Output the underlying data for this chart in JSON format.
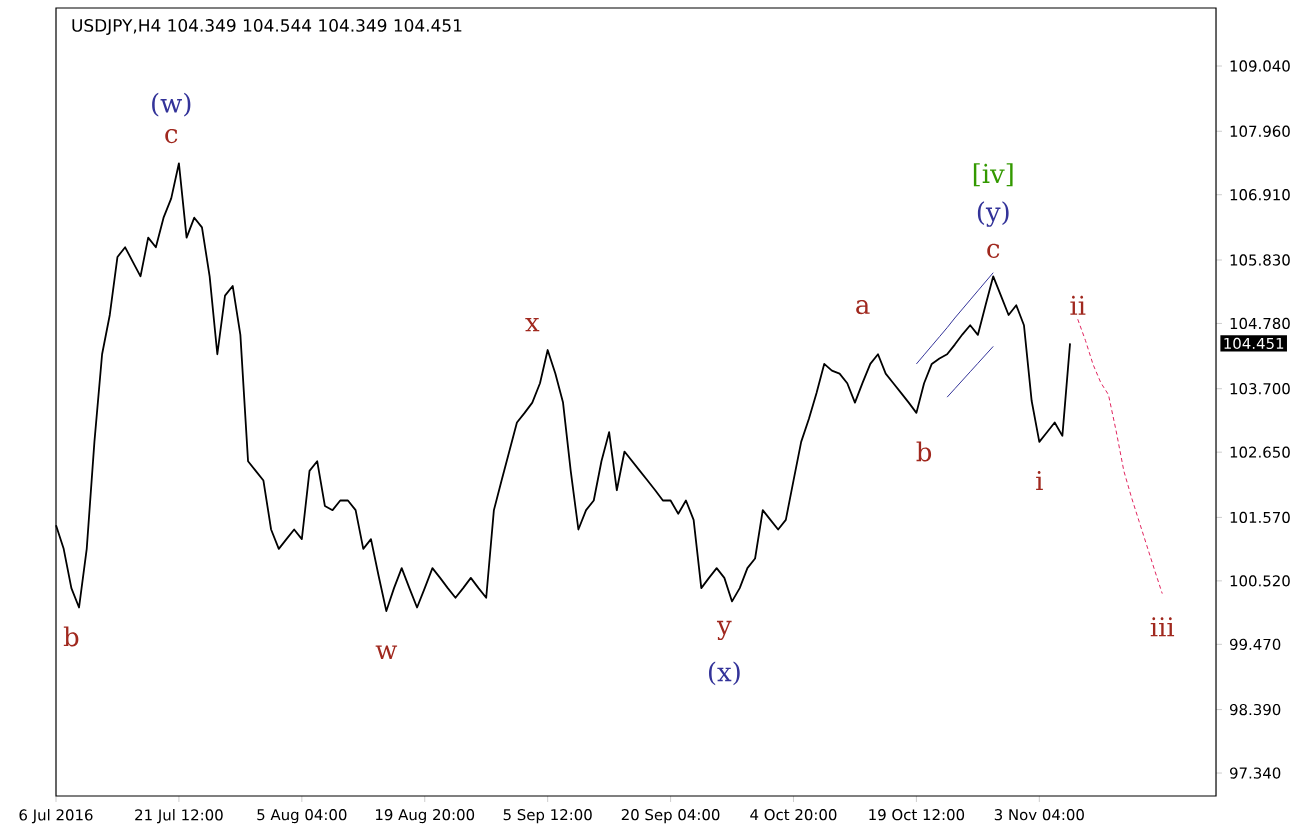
{
  "chart_data": {
    "type": "line",
    "title": "USDJPY,H4  104.349 104.544 104.349 104.451",
    "categories": [
      "6 Jul 2016",
      null,
      null,
      null,
      null,
      null,
      null,
      null,
      null,
      null,
      null,
      null,
      null,
      null,
      null,
      null,
      "21 Jul 12:00",
      null,
      null,
      null,
      null,
      null,
      null,
      null,
      null,
      null,
      null,
      null,
      null,
      null,
      null,
      null,
      "5 Aug 04:00",
      null,
      null,
      null,
      null,
      null,
      null,
      null,
      null,
      null,
      null,
      null,
      null,
      null,
      null,
      null,
      "19 Aug 20:00",
      null,
      null,
      null,
      null,
      null,
      null,
      null,
      null,
      null,
      null,
      null,
      null,
      null,
      null,
      null,
      "5 Sep 12:00",
      null,
      null,
      null,
      null,
      null,
      null,
      null,
      null,
      null,
      null,
      null,
      null,
      null,
      null,
      null,
      "20 Sep 04:00",
      null,
      null,
      null,
      null,
      null,
      null,
      null,
      null,
      null,
      null,
      null,
      null,
      null,
      null,
      null,
      "4 Oct 20:00",
      null,
      null,
      null,
      null,
      null,
      null,
      null,
      null,
      null,
      null,
      null,
      null,
      null,
      null,
      null,
      "19 Oct 12:00",
      null,
      null,
      null,
      null,
      null,
      null,
      null,
      null,
      null,
      null,
      null,
      null,
      null,
      null,
      null,
      "3 Nov 04:00",
      null,
      null,
      null,
      null,
      null,
      null,
      null,
      null,
      null,
      null,
      null,
      null,
      null,
      null,
      null,
      null,
      null,
      null,
      null,
      null,
      null,
      null,
      null
    ],
    "ylim": [
      96.96,
      110.0
    ],
    "yticks": [
      {
        "value": 109.04,
        "label": "109.040"
      },
      {
        "value": 107.96,
        "label": "107.960"
      },
      {
        "value": 106.91,
        "label": "106.910"
      },
      {
        "value": 105.83,
        "label": "105.830"
      },
      {
        "value": 104.78,
        "label": "104.780"
      },
      {
        "value": 103.7,
        "label": "103.700"
      },
      {
        "value": 102.65,
        "label": "102.650"
      },
      {
        "value": 101.57,
        "label": "101.570"
      },
      {
        "value": 100.52,
        "label": "100.520"
      },
      {
        "value": 99.47,
        "label": "99.470"
      },
      {
        "value": 98.39,
        "label": "98.390"
      },
      {
        "value": 97.34,
        "label": "97.340"
      }
    ],
    "grid": false,
    "marker": "none",
    "series": [
      {
        "color": "#000000",
        "values": [
          101.44,
          101.05,
          100.4,
          100.08,
          101.05,
          102.82,
          104.27,
          104.92,
          105.88,
          106.04,
          105.8,
          105.56,
          106.2,
          106.04,
          106.53,
          106.85,
          107.43,
          106.2,
          106.53,
          106.37,
          105.56,
          104.27,
          105.24,
          105.4,
          104.59,
          102.5,
          102.34,
          102.18,
          101.37,
          101.05,
          101.21,
          101.37,
          101.21,
          102.34,
          102.5,
          101.76,
          101.69,
          101.85,
          101.85,
          101.69,
          101.05,
          101.21,
          100.6,
          100.02,
          100.4,
          100.73,
          100.4,
          100.08,
          100.4,
          100.73,
          100.57,
          100.4,
          100.24,
          100.4,
          100.57,
          100.4,
          100.24,
          101.69,
          102.18,
          102.66,
          103.14,
          103.3,
          103.47,
          103.79,
          104.34,
          103.95,
          103.47,
          102.34,
          101.37,
          101.69,
          101.85,
          102.5,
          102.98,
          102.02,
          102.66,
          102.5,
          102.34,
          102.18,
          102.02,
          101.85,
          101.85,
          101.63,
          101.85,
          101.53,
          100.4,
          100.57,
          100.73,
          100.57,
          100.18,
          100.4,
          100.73,
          100.89,
          101.69,
          101.53,
          101.37,
          101.53,
          102.18,
          102.82,
          103.2,
          103.63,
          104.11,
          104.0,
          103.95,
          103.79,
          103.47,
          103.8,
          104.11,
          104.27,
          103.95,
          103.79,
          103.63,
          103.47,
          103.3,
          103.79,
          104.11,
          104.2,
          104.27,
          104.43,
          104.6,
          104.75,
          104.59,
          105.08,
          105.56,
          105.24,
          104.92,
          105.08,
          104.75,
          103.5,
          102.82,
          102.98,
          103.14,
          102.92,
          104.45,
          null,
          null,
          null,
          null,
          null,
          null,
          null,
          null,
          null,
          null,
          null,
          null,
          null,
          null,
          null,
          null,
          null,
          null,
          null
        ]
      },
      {
        "color": "#333399",
        "values": [
          null,
          null,
          null,
          null,
          null,
          null,
          null,
          null,
          null,
          null,
          null,
          null,
          null,
          null,
          null,
          null,
          null,
          null,
          null,
          null,
          null,
          null,
          null,
          null,
          null,
          null,
          null,
          null,
          null,
          null,
          null,
          null,
          null,
          null,
          null,
          null,
          null,
          null,
          null,
          null,
          null,
          null,
          null,
          null,
          null,
          null,
          null,
          null,
          null,
          null,
          null,
          null,
          null,
          null,
          null,
          null,
          null,
          null,
          null,
          null,
          null,
          null,
          null,
          null,
          null,
          null,
          null,
          null,
          null,
          null,
          null,
          null,
          null,
          null,
          null,
          null,
          null,
          null,
          null,
          null,
          null,
          null,
          null,
          null,
          null,
          null,
          null,
          null,
          null,
          null,
          null,
          null,
          null,
          null,
          null,
          null,
          null,
          null,
          null,
          null,
          null,
          null,
          null,
          null,
          null,
          null,
          null,
          null,
          null,
          null,
          null,
          null,
          104.11,
          104.26,
          104.41,
          104.56,
          104.71,
          104.87,
          105.02,
          105.17,
          105.32,
          105.47,
          105.62,
          null,
          null,
          null,
          null,
          null,
          null,
          null,
          null,
          null,
          null,
          null,
          null,
          null,
          null,
          null,
          null,
          null,
          null,
          null,
          null,
          null,
          null,
          null,
          null,
          null,
          null,
          null,
          null,
          null
        ]
      },
      {
        "color": "#333399",
        "values": [
          null,
          null,
          null,
          null,
          null,
          null,
          null,
          null,
          null,
          null,
          null,
          null,
          null,
          null,
          null,
          null,
          null,
          null,
          null,
          null,
          null,
          null,
          null,
          null,
          null,
          null,
          null,
          null,
          null,
          null,
          null,
          null,
          null,
          null,
          null,
          null,
          null,
          null,
          null,
          null,
          null,
          null,
          null,
          null,
          null,
          null,
          null,
          null,
          null,
          null,
          null,
          null,
          null,
          null,
          null,
          null,
          null,
          null,
          null,
          null,
          null,
          null,
          null,
          null,
          null,
          null,
          null,
          null,
          null,
          null,
          null,
          null,
          null,
          null,
          null,
          null,
          null,
          null,
          null,
          null,
          null,
          null,
          null,
          null,
          null,
          null,
          null,
          null,
          null,
          null,
          null,
          null,
          null,
          null,
          null,
          null,
          null,
          null,
          null,
          null,
          null,
          null,
          null,
          null,
          null,
          null,
          null,
          null,
          null,
          null,
          null,
          null,
          null,
          null,
          null,
          null,
          103.56,
          103.7,
          103.84,
          103.98,
          104.12,
          104.26,
          104.4,
          null,
          null,
          null,
          null,
          null,
          null,
          null,
          null,
          null,
          null,
          null,
          null,
          null,
          null,
          null,
          null,
          null,
          null,
          null,
          null,
          null,
          null,
          null,
          null,
          null,
          null,
          null,
          null,
          null
        ]
      },
      {
        "color": "#e0245e",
        "line_style": "dashed",
        "values": [
          null,
          null,
          null,
          null,
          null,
          null,
          null,
          null,
          null,
          null,
          null,
          null,
          null,
          null,
          null,
          null,
          null,
          null,
          null,
          null,
          null,
          null,
          null,
          null,
          null,
          null,
          null,
          null,
          null,
          null,
          null,
          null,
          null,
          null,
          null,
          null,
          null,
          null,
          null,
          null,
          null,
          null,
          null,
          null,
          null,
          null,
          null,
          null,
          null,
          null,
          null,
          null,
          null,
          null,
          null,
          null,
          null,
          null,
          null,
          null,
          null,
          null,
          null,
          null,
          null,
          null,
          null,
          null,
          null,
          null,
          null,
          null,
          null,
          null,
          null,
          null,
          null,
          null,
          null,
          null,
          null,
          null,
          null,
          null,
          null,
          null,
          null,
          null,
          null,
          null,
          null,
          null,
          null,
          null,
          null,
          null,
          null,
          null,
          null,
          null,
          null,
          null,
          null,
          null,
          null,
          null,
          null,
          null,
          null,
          null,
          null,
          null,
          null,
          null,
          null,
          null,
          null,
          null,
          null,
          null,
          null,
          null,
          null,
          null,
          null,
          null,
          null,
          null,
          null,
          null,
          null,
          null,
          null,
          104.85,
          104.5,
          104.1,
          103.8,
          103.6,
          103.0,
          102.34,
          101.9,
          101.5,
          101.1,
          100.7,
          100.31,
          null,
          null,
          null,
          null,
          null,
          null,
          null
        ]
      }
    ],
    "annotations": [
      "(w)",
      "c",
      "b",
      "w",
      "x",
      "y",
      "(x)",
      "a",
      "b",
      "[iv]",
      "(y)",
      "c",
      "i",
      "ii",
      "iii",
      "104.451"
    ]
  }
}
